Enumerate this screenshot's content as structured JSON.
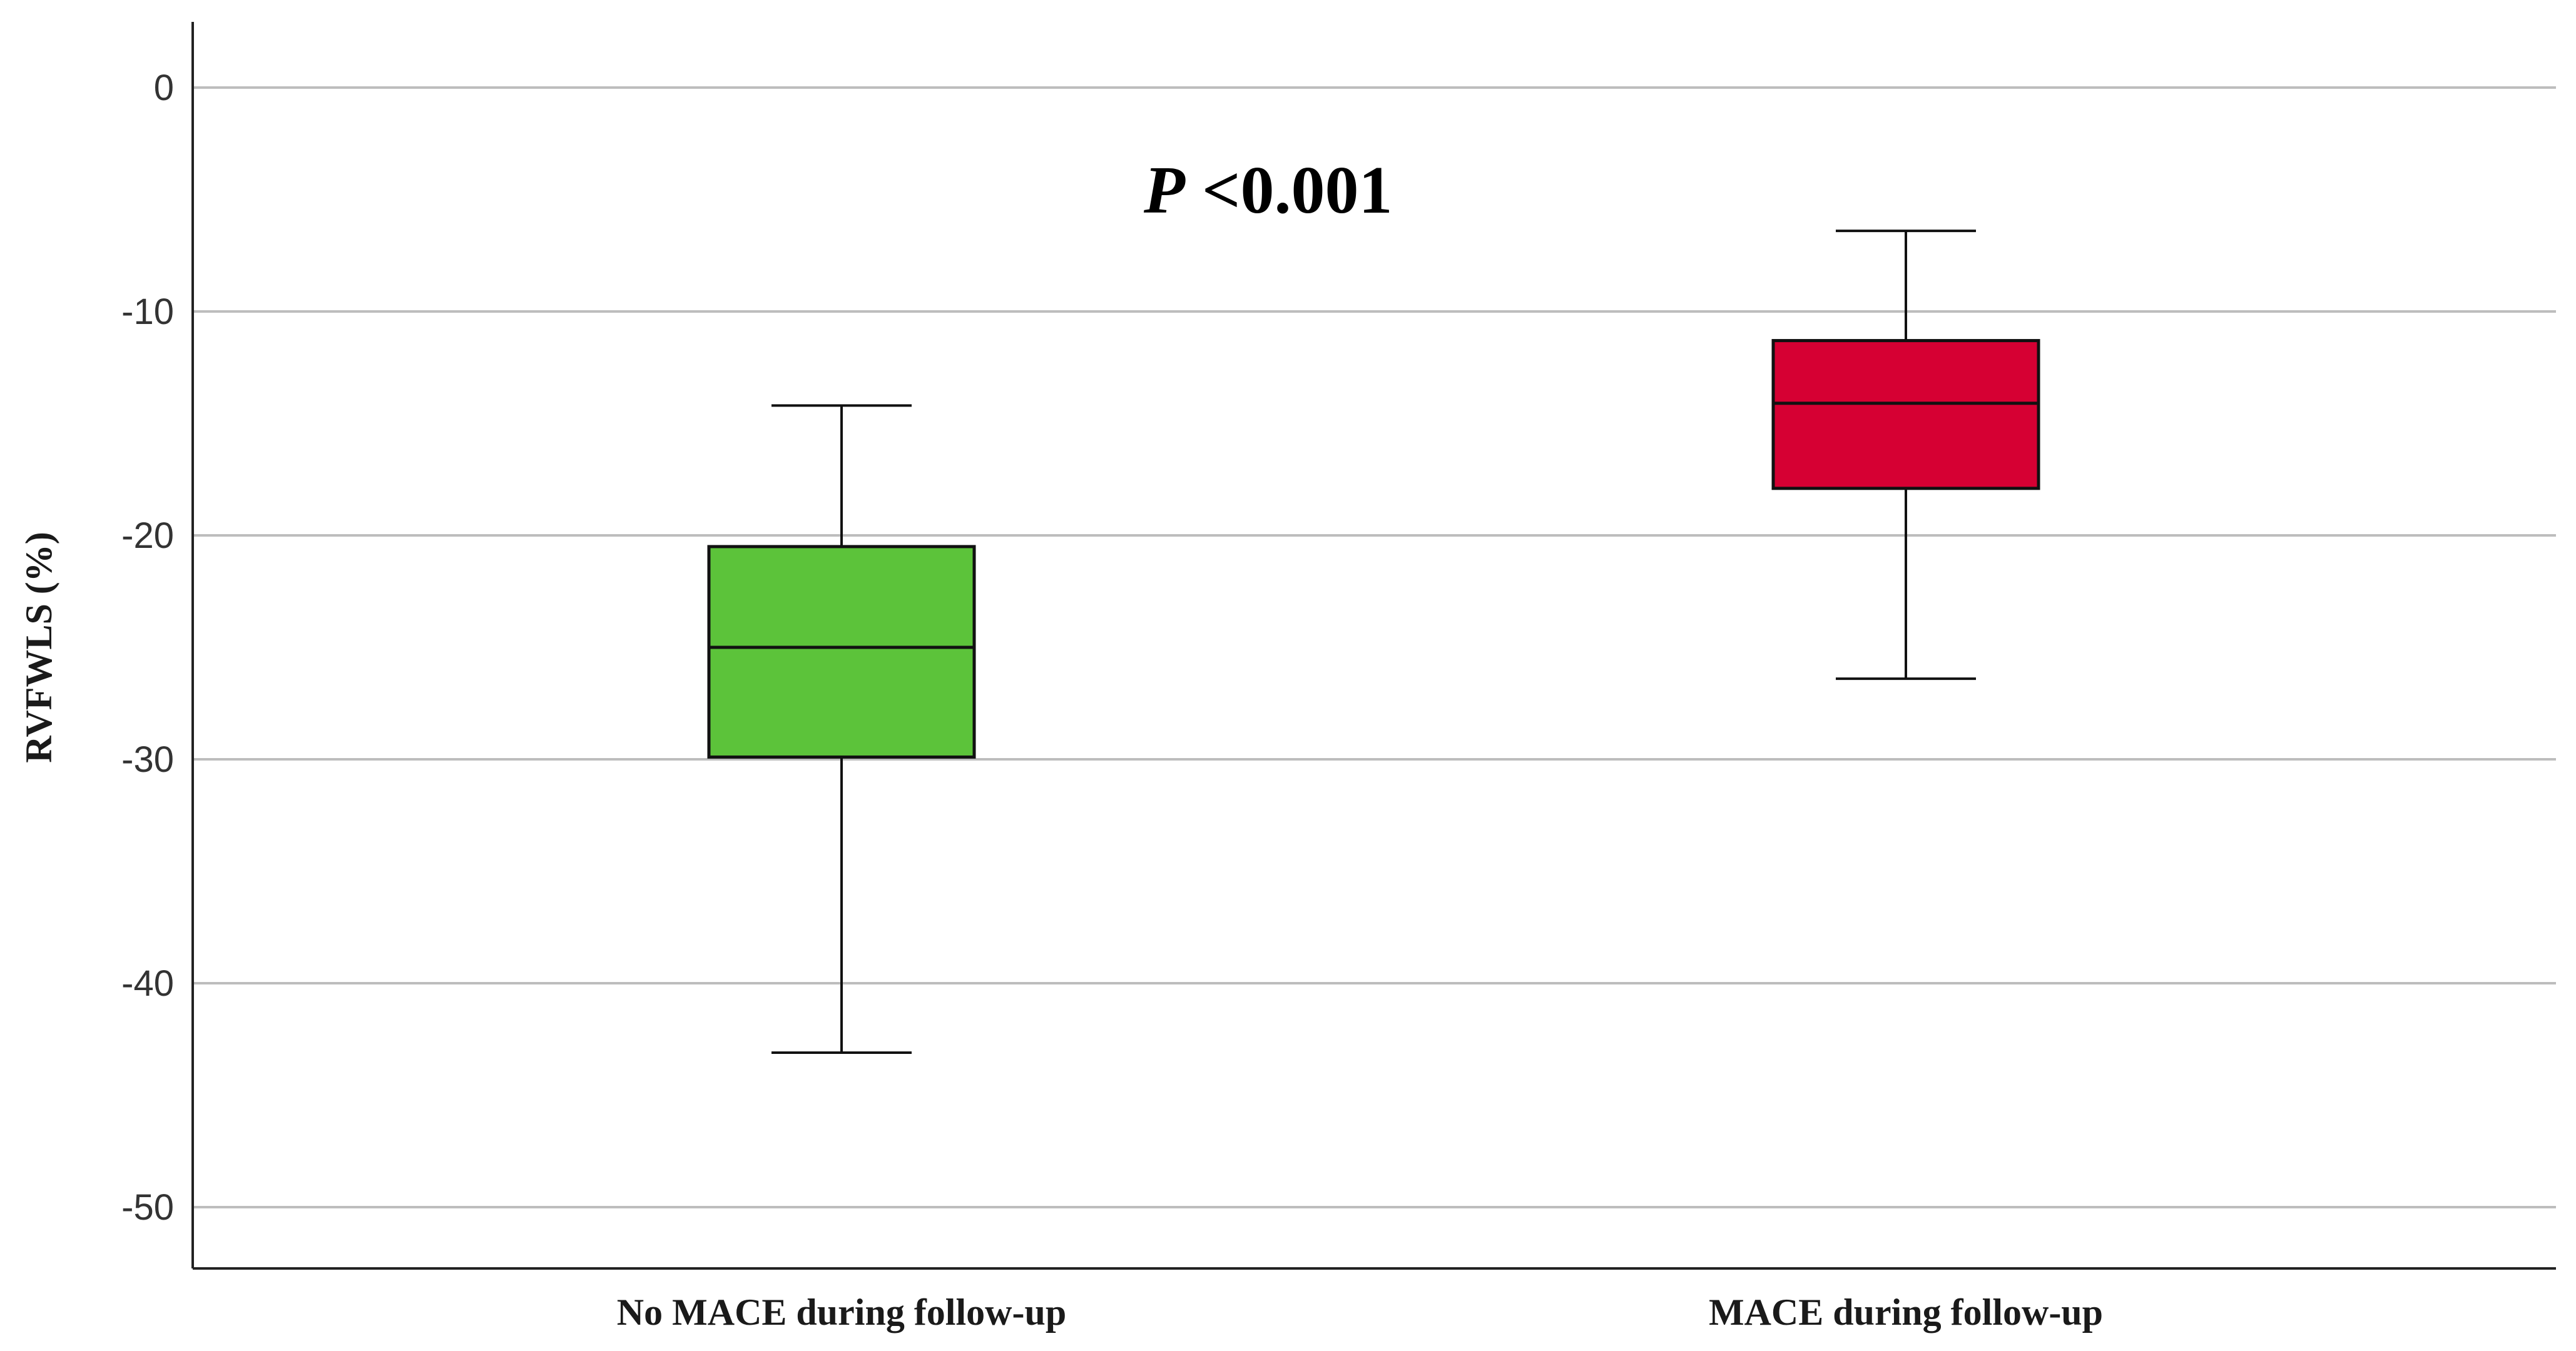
{
  "chart_data": {
    "type": "box",
    "title": "",
    "xlabel": "",
    "ylabel": "RVFWLS (%)",
    "ylim": [
      -53,
      3
    ],
    "yticks": [
      0,
      -10,
      -20,
      -30,
      -40,
      -50
    ],
    "ytick_labels": [
      "0",
      "-10",
      "-20",
      "-30",
      "-40",
      "-50"
    ],
    "grid": true,
    "categories": [
      "No MACE during follow-up",
      "MACE during follow-up"
    ],
    "series": [
      {
        "name": "No MACE during follow-up",
        "color": "#5cc33a",
        "whisker_low": -43.1,
        "q1": -29.9,
        "median": -25.0,
        "q3": -20.5,
        "whisker_high": -14.2
      },
      {
        "name": "MACE during follow-up",
        "color": "#d60033",
        "whisker_low": -26.4,
        "q1": -17.9,
        "median": -14.1,
        "q3": -11.3,
        "whisker_high": -6.4
      }
    ],
    "annotation": {
      "italic_part": "P",
      "rest": " <0.001"
    }
  }
}
